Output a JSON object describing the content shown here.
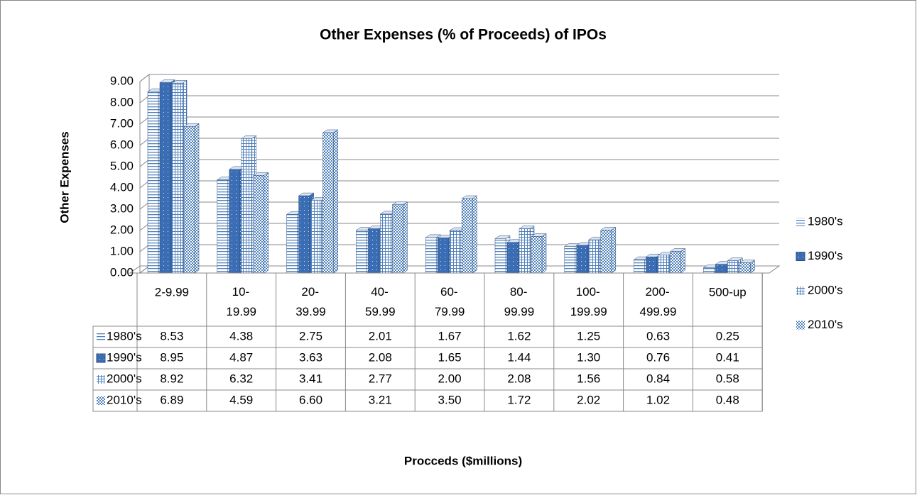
{
  "chart_data": {
    "type": "bar",
    "title": "Other Expenses (% of Proceeds) of IPOs",
    "y_label": "Other Expenses",
    "x_label": "Procceds ($millions)",
    "categories": [
      "2-9.99",
      "10-19.99",
      "20-39.99",
      "40-59.99",
      "60-79.99",
      "80-99.99",
      "100-199.99",
      "200-499.99",
      "500-up"
    ],
    "series": [
      {
        "name": "1980's",
        "color": "#4f81bd",
        "values": [
          8.53,
          4.38,
          2.75,
          2.01,
          1.67,
          1.62,
          1.25,
          0.63,
          0.25
        ],
        "value_labels": [
          "8.53",
          "4.38",
          "2.75",
          "2.01",
          "1.67",
          "1.62",
          "1.25",
          "0.63",
          "0.25"
        ]
      },
      {
        "name": "1990's",
        "color": "#3a6db3",
        "values": [
          8.95,
          4.87,
          3.63,
          2.08,
          1.65,
          1.44,
          1.3,
          0.76,
          0.41
        ],
        "value_labels": [
          "8.95",
          "4.87",
          "3.63",
          "2.08",
          "1.65",
          "1.44",
          "1.30",
          "0.76",
          "0.41"
        ]
      },
      {
        "name": "2000's",
        "color": "#4f81bd",
        "values": [
          8.92,
          6.32,
          3.41,
          2.77,
          2.0,
          2.08,
          1.56,
          0.84,
          0.58
        ],
        "value_labels": [
          "8.92",
          "6.32",
          "3.41",
          "2.77",
          "2.00",
          "2.08",
          "1.56",
          "0.84",
          "0.58"
        ]
      },
      {
        "name": "2010's",
        "color": "#4f81bd",
        "values": [
          6.89,
          4.59,
          6.6,
          3.21,
          3.5,
          1.72,
          2.02,
          1.02,
          0.48
        ],
        "value_labels": [
          "6.89",
          "4.59",
          "6.60",
          "3.21",
          "3.50",
          "1.72",
          "2.02",
          "1.02",
          "0.48"
        ]
      }
    ],
    "ylim": [
      0,
      9
    ],
    "yticks": [
      {
        "value": 0,
        "label": "0.00"
      },
      {
        "value": 1,
        "label": "1.00"
      },
      {
        "value": 2,
        "label": "2.00"
      },
      {
        "value": 3,
        "label": "3.00"
      },
      {
        "value": 4,
        "label": "4.00"
      },
      {
        "value": 5,
        "label": "5.00"
      },
      {
        "value": 6,
        "label": "6.00"
      },
      {
        "value": 7,
        "label": "7.00"
      },
      {
        "value": 8,
        "label": "8.00"
      },
      {
        "value": 9,
        "label": "9.00"
      }
    ],
    "grid": true,
    "legend": "right"
  }
}
